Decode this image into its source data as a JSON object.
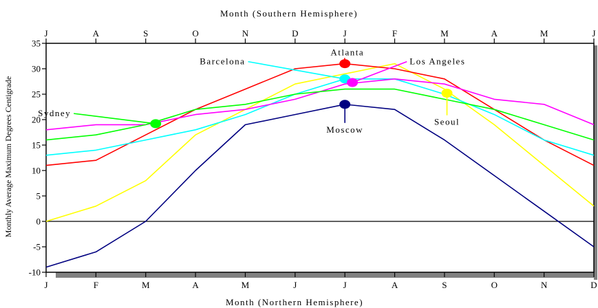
{
  "chart_data": {
    "type": "line",
    "xlabel": "Month (Northern Hemisphere)",
    "x2label": "Month (Southern Hemisphere)",
    "ylabel": "Monthly Average Maximum Degrees Centigrade",
    "categories": [
      "J",
      "F",
      "M",
      "A",
      "M",
      "J",
      "J",
      "A",
      "S",
      "O",
      "N",
      "D"
    ],
    "top_categories": [
      "J",
      "A",
      "S",
      "O",
      "N",
      "D",
      "J",
      "F",
      "M",
      "A",
      "M",
      "J"
    ],
    "ylim": [
      -10,
      35
    ],
    "yticks": [
      -10,
      -5,
      0,
      5,
      10,
      15,
      20,
      25,
      30,
      35
    ],
    "zero_line": true,
    "grid": false,
    "legend": "none",
    "series": [
      {
        "name": "Moscow",
        "color": "#000080",
        "values": [
          -9,
          -6,
          0,
          10,
          19,
          21,
          23,
          22,
          16,
          9,
          2,
          -5
        ],
        "marker": {
          "month": 6,
          "value": 23
        },
        "label": {
          "month": 6,
          "value": 18
        },
        "leader": "vertical"
      },
      {
        "name": "Seoul",
        "color": "#ffff00",
        "values": [
          0,
          3,
          8,
          17,
          22,
          27,
          29,
          31,
          26,
          19,
          11,
          3
        ],
        "marker": {
          "month": 8.05,
          "value": 25.2
        },
        "label": {
          "month": 8.05,
          "value": 19.5
        },
        "leader": "vertical"
      },
      {
        "name": "Atlanta",
        "color": "#ff0000",
        "values": [
          11,
          12,
          17,
          22,
          26,
          30,
          31,
          30,
          28,
          22,
          16,
          11
        ],
        "marker": {
          "month": 6,
          "value": 31
        },
        "label": {
          "month": 6.05,
          "value": 33.2
        },
        "leader": "diagonal"
      },
      {
        "name": "Barcelona",
        "color": "#00ffff",
        "values": [
          13,
          14,
          16,
          18,
          21,
          25,
          28,
          28,
          25,
          21,
          16,
          13
        ],
        "marker": {
          "month": 6,
          "value": 28
        },
        "label": {
          "month": 4.0,
          "value": 31.4
        },
        "leader": "diagonal"
      },
      {
        "name": "Los Angeles",
        "color": "#ff00ff",
        "values": [
          18,
          19,
          19,
          21,
          22,
          24,
          27,
          28,
          27,
          24,
          23,
          19
        ],
        "marker": {
          "month": 6.15,
          "value": 27.3
        },
        "label": {
          "month": 7.3,
          "value": 31.4
        },
        "leader": "diagonal"
      },
      {
        "name": "Sydney",
        "color": "#00ff00",
        "values": [
          16,
          17,
          19,
          22,
          23,
          25,
          26,
          26,
          24,
          22,
          19,
          16
        ],
        "marker": {
          "month": 2.2,
          "value": 19.2
        },
        "label": {
          "month": 0.5,
          "value": 21.2
        },
        "leader": "diagonal"
      }
    ]
  }
}
